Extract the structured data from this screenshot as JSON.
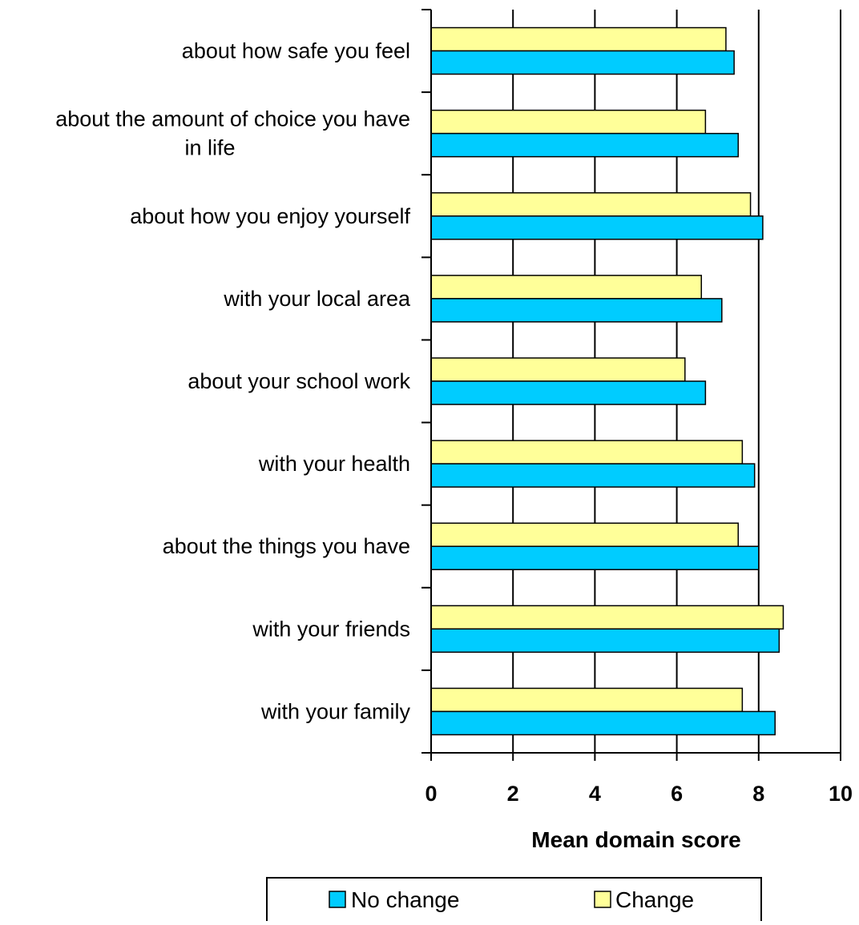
{
  "chart_data": {
    "type": "bar",
    "orientation": "horizontal",
    "categories": [
      "about how safe you feel",
      "about the amount of choice you have in life",
      "about how you enjoy yourself",
      "with your local area",
      "about your school work",
      "with your health",
      "about the things you have",
      "with your friends",
      "with your family"
    ],
    "category_lines": [
      [
        "about how safe you feel"
      ],
      [
        "about the amount of choice you have",
        "in life"
      ],
      [
        "about how you enjoy yourself"
      ],
      [
        "with your local area"
      ],
      [
        "about your school work"
      ],
      [
        "with your health"
      ],
      [
        "about the things you have"
      ],
      [
        "with your friends"
      ],
      [
        "with your family"
      ]
    ],
    "series": [
      {
        "name": "Change",
        "color": "#FFFF99",
        "values": [
          7.2,
          6.7,
          7.8,
          6.6,
          6.2,
          7.6,
          7.5,
          8.6,
          7.6
        ]
      },
      {
        "name": "No change",
        "color": "#00CCFF",
        "values": [
          7.4,
          7.5,
          8.1,
          7.1,
          6.7,
          7.9,
          8.0,
          8.5,
          8.4
        ]
      }
    ],
    "xlabel": "Mean domain score",
    "ylabel": "",
    "xlim": [
      0,
      10
    ],
    "xticks": [
      "0",
      "2",
      "4",
      "6",
      "8",
      "10"
    ],
    "grid": "vertical",
    "legend_position": "bottom",
    "legend_order": [
      "No change",
      "Change"
    ]
  }
}
